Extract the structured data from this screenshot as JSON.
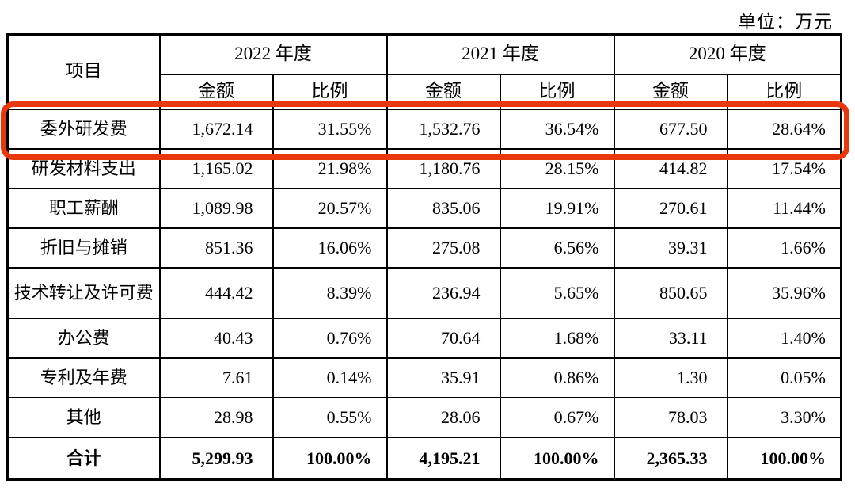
{
  "unit_label": "单位：万元",
  "highlight_color": "#e8380d",
  "table": {
    "item_header": "项目",
    "year_headers": [
      "2022 年度",
      "2021 年度",
      "2020 年度"
    ],
    "sub_headers": {
      "amount": "金额",
      "ratio": "比例"
    },
    "rows": [
      {
        "item": "委外研发费",
        "values": [
          "1,672.14",
          "31.55%",
          "1,532.76",
          "36.54%",
          "677.50",
          "28.64%"
        ],
        "highlighted": true
      },
      {
        "item": "研发材料支出",
        "values": [
          "1,165.02",
          "21.98%",
          "1,180.76",
          "28.15%",
          "414.82",
          "17.54%"
        ],
        "highlighted": false
      },
      {
        "item": "职工薪酬",
        "values": [
          "1,089.98",
          "20.57%",
          "835.06",
          "19.91%",
          "270.61",
          "11.44%"
        ],
        "highlighted": false
      },
      {
        "item": "折旧与摊销",
        "values": [
          "851.36",
          "16.06%",
          "275.08",
          "6.56%",
          "39.31",
          "1.66%"
        ],
        "highlighted": false
      },
      {
        "item": "技术转让及许可费",
        "values": [
          "444.42",
          "8.39%",
          "236.94",
          "5.65%",
          "850.65",
          "35.96%"
        ],
        "highlighted": false
      },
      {
        "item": "办公费",
        "values": [
          "40.43",
          "0.76%",
          "70.64",
          "1.68%",
          "33.11",
          "1.40%"
        ],
        "highlighted": false
      },
      {
        "item": "专利及年费",
        "values": [
          "7.61",
          "0.14%",
          "35.91",
          "0.86%",
          "1.30",
          "0.05%"
        ],
        "highlighted": false
      },
      {
        "item": "其他",
        "values": [
          "28.98",
          "0.55%",
          "28.06",
          "0.67%",
          "78.03",
          "3.30%"
        ],
        "highlighted": false
      }
    ],
    "total": {
      "item": "合计",
      "values": [
        "5,299.93",
        "100.00%",
        "4,195.21",
        "100.00%",
        "2,365.33",
        "100.00%"
      ]
    }
  }
}
